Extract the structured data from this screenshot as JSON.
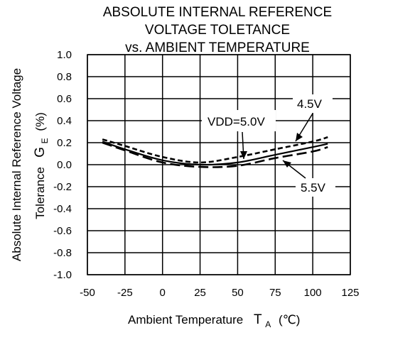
{
  "chart_data": {
    "type": "line",
    "title_lines": [
      "ABSOLUTE INTERNAL REFERENCE",
      "VOLTAGE TOLETANCE",
      "vs. AMBIENT TEMPERATURE"
    ],
    "xlabel": {
      "main": "Ambient Temperature",
      "symbol": "T",
      "subscript": "A",
      "unit": "(℃)"
    },
    "ylabel_lines": {
      "line1": "Absolute Internal Reference  Voltage",
      "line2_symbol": "G",
      "line2_subscript": "E",
      "line2_unit": "(%)",
      "line3": "Tolerance"
    },
    "xlim": [
      -50,
      125
    ],
    "ylim": [
      -1.0,
      1.0
    ],
    "x_ticks": [
      "-50",
      "-25",
      "0",
      "25",
      "50",
      "75",
      "100",
      "125"
    ],
    "y_ticks": [
      "1.0",
      "0.8",
      "0.6",
      "0.4",
      "0.2",
      "0.0",
      "-0.2",
      "-0.4",
      "-0.6",
      "-0.8",
      "-1.0"
    ],
    "grid": true,
    "series": [
      {
        "name": "4.5V",
        "style": "short-dash",
        "x": [
          -40,
          -25,
          0,
          25,
          50,
          75,
          100,
          110
        ],
        "y": [
          0.23,
          0.17,
          0.07,
          0.02,
          0.07,
          0.14,
          0.21,
          0.25
        ]
      },
      {
        "name": "VDD=5.0V",
        "style": "solid",
        "x": [
          -40,
          -25,
          0,
          25,
          50,
          75,
          100,
          110
        ],
        "y": [
          0.21,
          0.14,
          0.04,
          0.0,
          0.02,
          0.09,
          0.16,
          0.19
        ]
      },
      {
        "name": "5.5V",
        "style": "long-dash",
        "x": [
          -40,
          -25,
          0,
          25,
          50,
          75,
          100,
          110
        ],
        "y": [
          0.2,
          0.13,
          0.02,
          -0.02,
          -0.01,
          0.06,
          0.12,
          0.16
        ]
      }
    ],
    "colors": {
      "line": "#000000",
      "grid": "#000000",
      "background": "#ffffff"
    }
  }
}
